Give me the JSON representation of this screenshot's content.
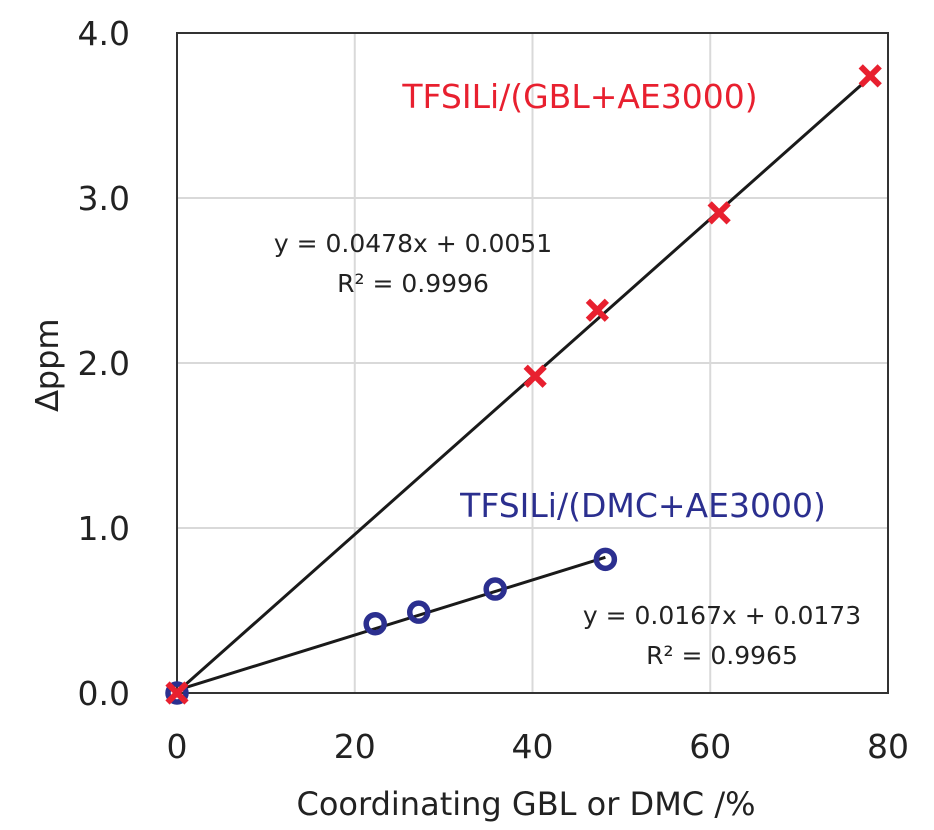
{
  "chart_data": {
    "type": "scatter",
    "xlabel": "Coordinating GBL or DMC /%",
    "ylabel": "∆ppm",
    "xlim": [
      0,
      80
    ],
    "ylim": [
      0,
      4.0
    ],
    "x_ticks": [
      "0",
      "20",
      "40",
      "60",
      "80"
    ],
    "y_ticks": [
      "0.0",
      "1.0",
      "2.0",
      "3.0",
      "4.0"
    ],
    "grid": true,
    "series": [
      {
        "name": "TFSILi/(GBL+AE3000)",
        "marker": "x",
        "color": "#e8202f",
        "points": [
          [
            0,
            0.0
          ],
          [
            40.3,
            1.92
          ],
          [
            47.3,
            2.32
          ],
          [
            61.0,
            2.91
          ],
          [
            78.0,
            3.74
          ]
        ],
        "fit": {
          "slope": 0.0478,
          "intercept": 0.0051,
          "x_range": [
            0,
            78
          ],
          "equation": "y = 0.0478x + 0.0051",
          "r2": "R² = 0.9996"
        }
      },
      {
        "name": "TFSILi/(DMC+AE3000)",
        "marker": "o",
        "color": "#2b2f8f",
        "points": [
          [
            0,
            0.0
          ],
          [
            22.3,
            0.42
          ],
          [
            27.2,
            0.49
          ],
          [
            35.8,
            0.63
          ],
          [
            48.2,
            0.81
          ]
        ],
        "fit": {
          "slope": 0.0167,
          "intercept": 0.0173,
          "x_range": [
            0,
            48.2
          ],
          "equation": "y = 0.0167x + 0.0173",
          "r2": "R² = 0.9965"
        }
      }
    ]
  }
}
